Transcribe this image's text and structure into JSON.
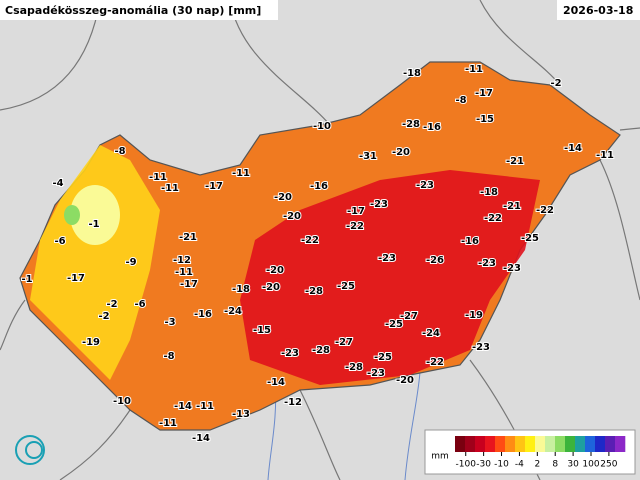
{
  "header": {
    "title": "Csapadékösszeg-anomália (30 nap) [mm]",
    "date": "2026-03-18"
  },
  "legend": {
    "unit": "mm",
    "ticks": [
      -100,
      -30,
      -10,
      -4,
      2,
      8,
      30,
      100,
      250
    ],
    "colors": [
      "#7a0010",
      "#a0001a",
      "#c8001e",
      "#e8141e",
      "#ff4b14",
      "#ff8c14",
      "#ffc414",
      "#fff014",
      "#fafa96",
      "#c8f0a0",
      "#8cdc64",
      "#3cb43c",
      "#1ea0a0",
      "#1e64dc",
      "#1e28c8",
      "#5a1eb4",
      "#8c28c8"
    ]
  },
  "stations": {
    "values": [
      -18,
      -11,
      -2,
      -8,
      -17,
      -15,
      -10,
      -28,
      -16,
      -31,
      -20,
      -21,
      -14,
      -11,
      -8,
      -11,
      -11,
      -17,
      -11,
      -4,
      -16,
      -23,
      -18,
      -20,
      -20,
      -17,
      -23,
      -21,
      -22,
      -1,
      -22,
      -22,
      -6,
      -21,
      -22,
      -16,
      -25,
      -9,
      -12,
      -23,
      -26,
      -23,
      -23,
      -1,
      -17,
      -11,
      -20,
      -17,
      -18,
      -20,
      -28,
      -25,
      -2,
      -6,
      -2,
      -24,
      -16,
      -3,
      -27,
      -25,
      -19,
      -15,
      -24,
      -27,
      -19,
      -28,
      -23,
      -23,
      -8,
      -25,
      -22,
      -28,
      -23,
      -20,
      -14,
      -10,
      -14,
      -11,
      -12,
      -13,
      -11,
      -14
    ]
  }
}
